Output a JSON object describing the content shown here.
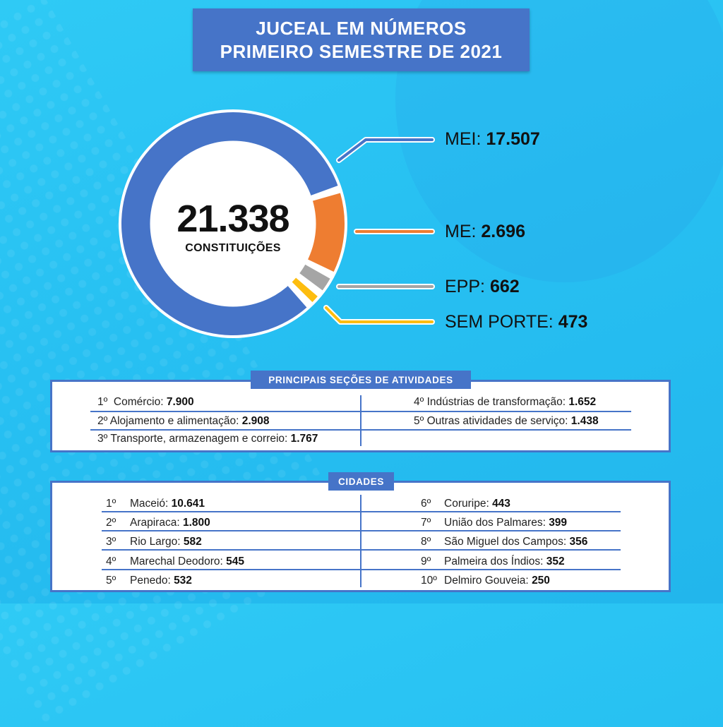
{
  "header": {
    "title_line1": "JUCEAL EM NÚMEROS",
    "title_line2": "PRIMEIRO SEMESTRE DE 2021"
  },
  "colors": {
    "background": "#27c0f2",
    "primary_blue": "#4674c8",
    "orange": "#ee7d31",
    "gray": "#a5a5a5",
    "yellow": "#fdbd10",
    "white": "#ffffff",
    "text": "#111111"
  },
  "chart_data": {
    "type": "pie",
    "variant": "donut",
    "title": "21.338",
    "subtitle": "CONSTITUIÇÕES",
    "total": 21338,
    "total_label": "21.338",
    "center_label": "CONSTITUIÇÕES",
    "categories": [
      "MEI",
      "ME",
      "EPP",
      "SEM PORTE"
    ],
    "values": [
      17507,
      2696,
      662,
      473
    ],
    "value_labels": [
      "17.507",
      "2.696",
      "662",
      "473"
    ],
    "series_colors": [
      "#4674c8",
      "#ee7d31",
      "#a5a5a5",
      "#fdbd10"
    ],
    "legend_placement": "right"
  },
  "activities": {
    "heading": "PRINCIPAIS SEÇÕES DE ATIVIDADES",
    "items": [
      {
        "rank": "1º",
        "name": "Comércio:",
        "value": "7.900"
      },
      {
        "rank": "2º",
        "name": "Alojamento e alimentação:",
        "value": "2.908"
      },
      {
        "rank": "3º",
        "name": "Transporte, armazenagem e correio:",
        "value": "1.767"
      },
      {
        "rank": "4º",
        "name": "Indústrias de transformação:",
        "value": "1.652"
      },
      {
        "rank": "5º",
        "name": "Outras atividades de serviço:",
        "value": "1.438"
      }
    ]
  },
  "cities": {
    "heading": "CIDADES",
    "items": [
      {
        "rank": "1º",
        "name": "Maceió:",
        "value": "10.641"
      },
      {
        "rank": "2º",
        "name": "Arapiraca:",
        "value": "1.800"
      },
      {
        "rank": "3º",
        "name": "Rio Largo:",
        "value": "582"
      },
      {
        "rank": "4º",
        "name": "Marechal Deodoro:",
        "value": "545"
      },
      {
        "rank": "5º",
        "name": "Penedo:",
        "value": "532"
      },
      {
        "rank": "6º",
        "name": "Coruripe:",
        "value": "443"
      },
      {
        "rank": "7º",
        "name": "União dos Palmares:",
        "value": "399"
      },
      {
        "rank": "8º",
        "name": "São Miguel dos Campos:",
        "value": "356"
      },
      {
        "rank": "9º",
        "name": "Palmeira dos Índios:",
        "value": "352"
      },
      {
        "rank": "10º",
        "name": "Delmiro Gouveia:",
        "value": "250"
      }
    ]
  }
}
